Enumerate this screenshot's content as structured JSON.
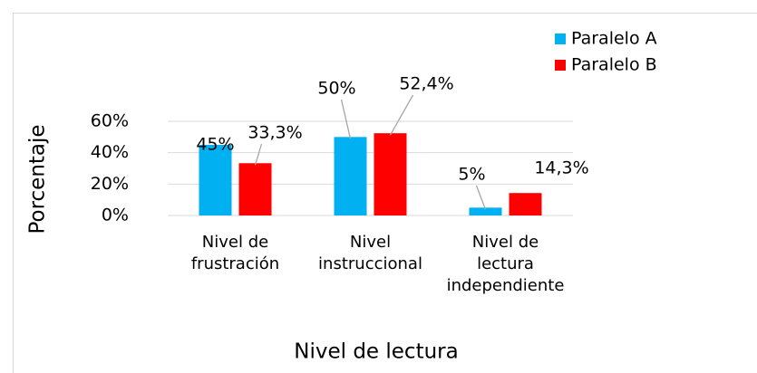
{
  "chart_data": {
    "type": "bar",
    "categories": [
      "Nivel de\nfrustración",
      "Nivel\ninstruccional",
      "Nivel de\nlectura\nindependiente"
    ],
    "series": [
      {
        "name": "Paralelo A",
        "color": "#00b0f0",
        "values": [
          45,
          50,
          5
        ],
        "value_labels": [
          "45%",
          "50%",
          "5%"
        ]
      },
      {
        "name": "Paralelo B",
        "color": "#ff0000",
        "values": [
          33.3,
          52.4,
          14.3
        ],
        "value_labels": [
          "33,3%",
          "52,4%",
          "14,3%"
        ]
      }
    ],
    "ylim": [
      0,
      60
    ],
    "yticks": [
      {
        "value": 0,
        "label": "0%"
      },
      {
        "value": 20,
        "label": "20%"
      },
      {
        "value": 40,
        "label": "40%"
      },
      {
        "value": 60,
        "label": "60%"
      }
    ],
    "xlabel": "Nivel de lectura",
    "ylabel": "Porcentaje",
    "grid": true,
    "legend": "top-right"
  }
}
